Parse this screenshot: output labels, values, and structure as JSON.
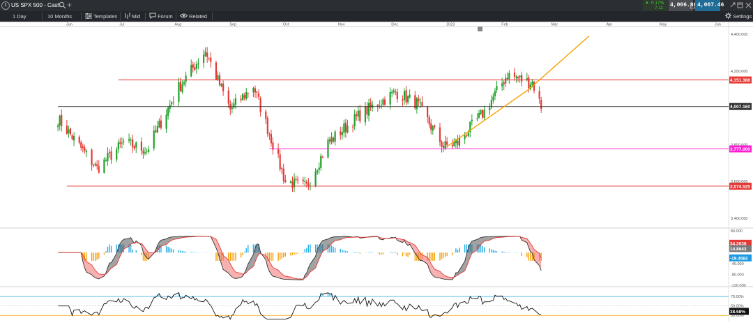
{
  "window": {
    "title": "US SPX 500 - Cash",
    "tab_number": "1"
  },
  "quote": {
    "change_pct": "0.17%",
    "change_abs": "7.11",
    "bid": "4,006.86",
    "spread": "0.6",
    "ask": "4,007.46"
  },
  "toolbar": {
    "interval": "1 Day",
    "range": "10 Months",
    "templates": "Templates",
    "price_type": "Mid",
    "forum": "Forum",
    "related": "Related",
    "settings": "Settings"
  },
  "chart_data": [
    {
      "type": "candlestick",
      "x_axis_labels": [
        "Jun",
        "Jul",
        "Aug",
        "Sep",
        "Oct",
        "Nov",
        "Dec",
        "2023",
        "Feb",
        "Mar",
        "Apr",
        "May",
        "Jun"
      ],
      "ylim": [
        3400,
        4400
      ],
      "y_ticks": [
        "4,400.000",
        "4,200.000",
        "4,000.000",
        "3,800.000",
        "3,600.000",
        "3,400.000"
      ],
      "y_tick_values": [
        4400,
        4200,
        4000,
        3800,
        3600,
        3400
      ],
      "grid": false,
      "control_points": [
        {
          "date": "2022-05-25",
          "value": 3940
        },
        {
          "date": "2022-06-16",
          "value": 3670
        },
        {
          "date": "2022-07-01",
          "value": 3810
        },
        {
          "date": "2022-07-14",
          "value": 3770
        },
        {
          "date": "2022-08-01",
          "value": 4110
        },
        {
          "date": "2022-08-16",
          "value": 4310
        },
        {
          "date": "2022-08-30",
          "value": 3990
        },
        {
          "date": "2022-09-12",
          "value": 4120
        },
        {
          "date": "2022-09-30",
          "value": 3600
        },
        {
          "date": "2022-10-12",
          "value": 3570
        },
        {
          "date": "2022-10-24",
          "value": 3810
        },
        {
          "date": "2022-11-10",
          "value": 3955
        },
        {
          "date": "2022-12-01",
          "value": 4085
        },
        {
          "date": "2022-12-13",
          "value": 4025
        },
        {
          "date": "2022-12-28",
          "value": 3790
        },
        {
          "date": "2023-01-05",
          "value": 3810
        },
        {
          "date": "2023-01-20",
          "value": 3980
        },
        {
          "date": "2023-02-02",
          "value": 4180
        },
        {
          "date": "2023-02-14",
          "value": 4140
        },
        {
          "date": "2023-02-16",
          "value": 4140
        },
        {
          "date": "2023-02-21",
          "value": 4007
        }
      ],
      "horizontal_lines": [
        {
          "value": 4151.388,
          "label": "4,151.388",
          "color": "#e53935",
          "x_start": "2022-06-28"
        },
        {
          "value": 4007.16,
          "label": "4,007.160",
          "color": "#333333",
          "x_start": "2022-05-25"
        },
        {
          "value": 3777.0,
          "label": "3,777.000",
          "color": "#ff1fd2",
          "x_start": "2022-09-21"
        },
        {
          "value": 3574.525,
          "label": "3,574.525",
          "color": "#e53935",
          "x_start": "2022-05-30"
        }
      ],
      "trendline": {
        "color": "#f5a000",
        "points": [
          {
            "date": "2022-12-30",
            "value": 3790
          },
          {
            "date": "2023-02-14",
            "value": 4100
          },
          {
            "date": "2023-03-20",
            "value": 4390
          }
        ]
      },
      "up_color": "#1fa12a",
      "down_color": "#e53935"
    },
    {
      "type": "oscillator",
      "name": "macd",
      "y_ticks": [
        "80.000",
        "40.000",
        "-40.000",
        "-80.000",
        "-120.000"
      ],
      "y_tick_values": [
        80,
        40,
        -40,
        -80,
        -120
      ],
      "ylim": [
        -120,
        80
      ],
      "current_labels": [
        {
          "value": 34.2638,
          "label": "34.2638",
          "color": "#e53935"
        },
        {
          "value": 14.8643,
          "label": "14.8643",
          "color": "#7a7a7a"
        },
        {
          "value": -19.4582,
          "label": "-19.4582",
          "color": "#1e9be0"
        }
      ],
      "series_colors": {
        "fast": "#333333",
        "slow": "#e53935",
        "hist_pos": "#29aee8",
        "hist_neg": "#f5a000"
      }
    },
    {
      "type": "oscillator",
      "name": "rsi",
      "y_ticks": [
        "70.00%",
        "50.00%",
        "30.00%"
      ],
      "y_tick_values": [
        70,
        50,
        30
      ],
      "ylim": [
        20,
        85
      ],
      "current_label": {
        "value": 38.58,
        "label": "38.58%"
      },
      "levels": [
        {
          "value": 70,
          "color": "#29aee8"
        },
        {
          "value": 30,
          "color": "#f5a000"
        }
      ]
    }
  ]
}
